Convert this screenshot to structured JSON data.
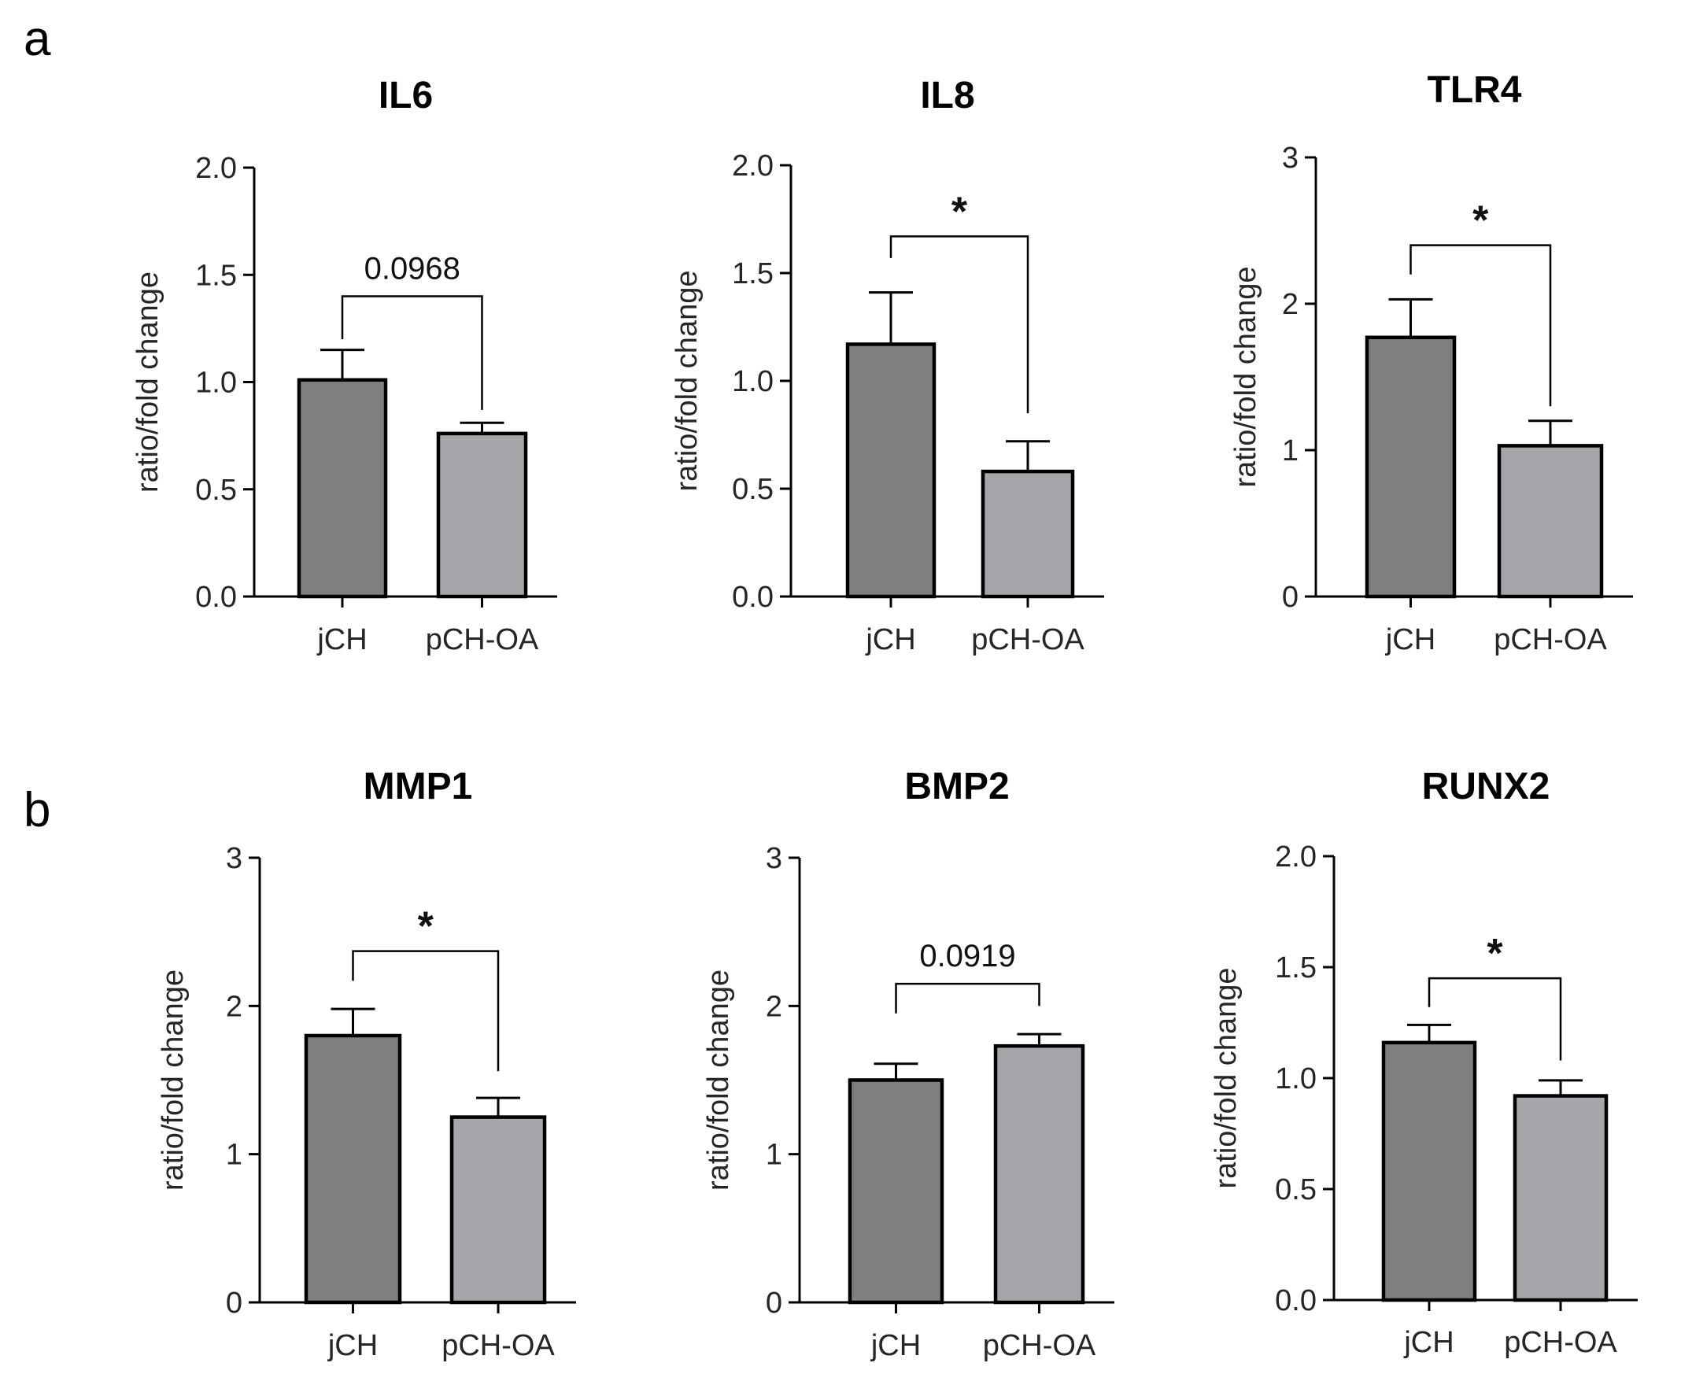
{
  "panels": [
    {
      "letter": "a"
    },
    {
      "letter": "b"
    }
  ],
  "colors": {
    "jCH": "#7f7f7f",
    "pCH-OA": "#a6a6aa",
    "stroke": "#000000"
  },
  "chart_data": [
    {
      "type": "bar",
      "panel": "a",
      "title": "IL6",
      "categories": [
        "jCH",
        "pCH-OA"
      ],
      "values": [
        1.01,
        0.76
      ],
      "errors": [
        0.14,
        0.05
      ],
      "ylabel": "ratio/fold change",
      "ylim": [
        0,
        2.0
      ],
      "yticks": [
        0.0,
        0.5,
        1.0,
        1.5,
        2.0
      ],
      "ytick_labels": [
        "0.0",
        "0.5",
        "1.0",
        "1.5",
        "2.0"
      ],
      "significance": {
        "label": "0.0968",
        "kind": "p",
        "line_y": 1.4,
        "left_end": 1.2,
        "right_end": 0.87
      }
    },
    {
      "type": "bar",
      "panel": "a",
      "title": "IL8",
      "categories": [
        "jCH",
        "pCH-OA"
      ],
      "values": [
        1.17,
        0.58
      ],
      "errors": [
        0.24,
        0.14
      ],
      "ylabel": "ratio/fold change",
      "ylim": [
        0,
        2.0
      ],
      "yticks": [
        0.0,
        0.5,
        1.0,
        1.5,
        2.0
      ],
      "ytick_labels": [
        "0.0",
        "0.5",
        "1.0",
        "1.5",
        "2.0"
      ],
      "significance": {
        "label": "*",
        "kind": "star",
        "line_y": 1.67,
        "left_end": 1.57,
        "right_end": 0.85
      }
    },
    {
      "type": "bar",
      "panel": "a",
      "title": "TLR4",
      "categories": [
        "jCH",
        "pCH-OA"
      ],
      "values": [
        1.77,
        1.03
      ],
      "errors": [
        0.26,
        0.17
      ],
      "ylabel": "ratio/fold change",
      "ylim": [
        0,
        3
      ],
      "yticks": [
        0,
        1,
        2,
        3
      ],
      "ytick_labels": [
        "0",
        "1",
        "2",
        "3"
      ],
      "significance": {
        "label": "*",
        "kind": "star",
        "line_y": 2.4,
        "left_end": 2.2,
        "right_end": 1.3
      }
    },
    {
      "type": "bar",
      "panel": "b",
      "title": "MMP1",
      "categories": [
        "jCH",
        "pCH-OA"
      ],
      "values": [
        1.8,
        1.25
      ],
      "errors": [
        0.18,
        0.13
      ],
      "ylabel": "ratio/fold change",
      "ylim": [
        0,
        3
      ],
      "yticks": [
        0,
        1,
        2,
        3
      ],
      "ytick_labels": [
        "0",
        "1",
        "2",
        "3"
      ],
      "significance": {
        "label": "*",
        "kind": "star",
        "line_y": 2.37,
        "left_end": 2.17,
        "right_end": 1.56
      }
    },
    {
      "type": "bar",
      "panel": "b",
      "title": "BMP2",
      "categories": [
        "jCH",
        "pCH-OA"
      ],
      "values": [
        1.5,
        1.73
      ],
      "errors": [
        0.11,
        0.08
      ],
      "ylabel": "ratio/fold change",
      "ylim": [
        0,
        3
      ],
      "yticks": [
        0,
        1,
        2,
        3
      ],
      "ytick_labels": [
        "0",
        "1",
        "2",
        "3"
      ],
      "significance": {
        "label": "0.0919",
        "kind": "p",
        "line_y": 2.15,
        "left_end": 1.95,
        "right_end": 2.0
      }
    },
    {
      "type": "bar",
      "panel": "b",
      "title": "RUNX2",
      "categories": [
        "jCH",
        "pCH-OA"
      ],
      "values": [
        1.16,
        0.92
      ],
      "errors": [
        0.08,
        0.07
      ],
      "ylabel": "ratio/fold change",
      "ylim": [
        0,
        2.0
      ],
      "yticks": [
        0.0,
        0.5,
        1.0,
        1.5,
        2.0
      ],
      "ytick_labels": [
        "0.0",
        "0.5",
        "1.0",
        "1.5",
        "2.0"
      ],
      "significance": {
        "label": "*",
        "kind": "star",
        "line_y": 1.45,
        "left_end": 1.32,
        "right_end": 1.08
      }
    }
  ]
}
